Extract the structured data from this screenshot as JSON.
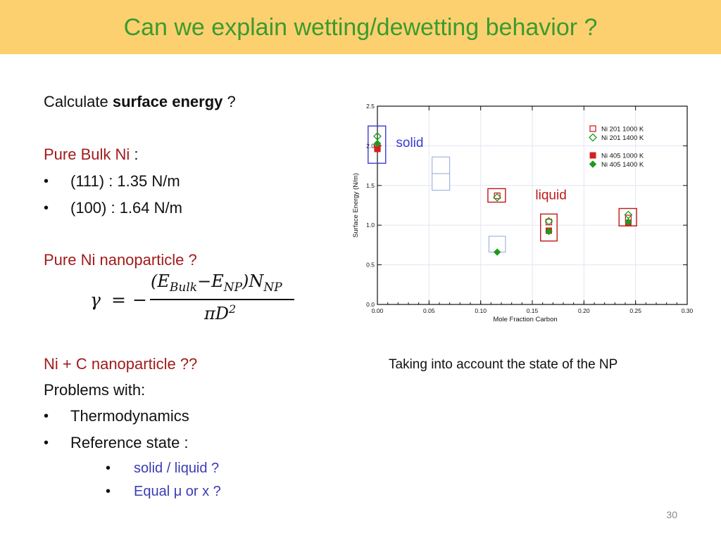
{
  "slide": {
    "title": "Can we explain wetting/dewetting behavior ?",
    "page_number": "30",
    "intro_prefix": "Calculate ",
    "intro_bold": "surface energy",
    "intro_suffix": " ?",
    "bulk_heading": "Pure Bulk Ni",
    "bulk_colon": " :",
    "bulk_items": [
      "(111) : 1.35 N/m",
      "(100) : 1.64 N/m"
    ],
    "nano_heading": "Pure Ni nanoparticle ?",
    "equation": {
      "gamma": "γ",
      "equals": "=",
      "minus": "−",
      "numerator_open": "(E",
      "numerator_bulk_sub": "Bulk",
      "numerator_minus": "−E",
      "numerator_np_sub": "NP",
      "numerator_close": ")N",
      "numerator_np_sub2": "NP",
      "denominator_pi": "πD",
      "denominator_exp": "2"
    },
    "nic_heading": "Ni + C nanoparticle ??",
    "problems_label": "Problems with:",
    "problem_items": [
      "Thermodynamics",
      "Reference state :"
    ],
    "sub_items": [
      "solid / liquid ?",
      "Equal μ or x ?"
    ],
    "bullet_char": "•",
    "caption": "Taking into account the state of the NP"
  },
  "chart_data": {
    "type": "scatter",
    "xlabel": "Mole Fraction Carbon",
    "ylabel": "Surface Energy (N/m)",
    "xlim": [
      0.0,
      0.3
    ],
    "ylim": [
      0.0,
      2.5
    ],
    "xticks": [
      "0.00",
      "0.05",
      "0.10",
      "0.15",
      "0.20",
      "0.25",
      "0.30"
    ],
    "yticks": [
      "0.0",
      "0.5",
      "1.0",
      "1.5",
      "2.0",
      "2.5"
    ],
    "grid": true,
    "legend_position": "top-right",
    "colors": {
      "red": "#d42020",
      "green": "#1e9a1e",
      "solid_box": "#3b3bd6",
      "liquid_box": "#c01818",
      "faint_box": "#8fa8d8"
    },
    "series": [
      {
        "name": "Ni 201 1000 K",
        "marker": "open-square",
        "color": "#d42020",
        "points": [
          [
            0.0,
            1.98
          ],
          [
            0.116,
            1.37
          ],
          [
            0.166,
            1.04
          ],
          [
            0.243,
            1.09
          ]
        ]
      },
      {
        "name": "Ni 201 1400 K",
        "marker": "open-diamond",
        "color": "#1e9a1e",
        "points": [
          [
            0.0,
            2.12
          ],
          [
            0.116,
            1.35
          ],
          [
            0.166,
            1.05
          ],
          [
            0.243,
            1.13
          ]
        ]
      },
      {
        "name": "Ni 405 1000 K",
        "marker": "filled-square",
        "color": "#d42020",
        "points": [
          [
            0.0,
            1.96
          ],
          [
            0.166,
            0.93
          ],
          [
            0.243,
            1.03
          ]
        ]
      },
      {
        "name": "Ni 405 1400 K",
        "marker": "filled-diamond",
        "color": "#1e9a1e",
        "points": [
          [
            0.0,
            2.03
          ],
          [
            0.166,
            0.92
          ],
          [
            0.243,
            1.04
          ],
          [
            0.116,
            0.66
          ]
        ]
      }
    ],
    "annotations": [
      {
        "text": "solid",
        "color": "#3b3bd6",
        "x": 0.018,
        "y": 2.04
      },
      {
        "text": "liquid",
        "color": "#c01818",
        "x": 0.153,
        "y": 1.38
      }
    ],
    "boxes": [
      {
        "kind": "solid",
        "x0": -0.009,
        "x1": 0.008,
        "y0": 1.78,
        "y1": 2.25
      },
      {
        "kind": "faint",
        "x0": 0.053,
        "x1": 0.07,
        "y0": 1.44,
        "y1": 1.86
      },
      {
        "kind": "faint",
        "x0": 0.108,
        "x1": 0.124,
        "y0": 0.66,
        "y1": 0.86
      },
      {
        "kind": "liquid",
        "x0": 0.107,
        "x1": 0.124,
        "y0": 1.29,
        "y1": 1.46
      },
      {
        "kind": "liquid",
        "x0": 0.158,
        "x1": 0.174,
        "y0": 0.8,
        "y1": 1.14
      },
      {
        "kind": "liquid",
        "x0": 0.234,
        "x1": 0.251,
        "y0": 0.99,
        "y1": 1.21
      }
    ]
  }
}
